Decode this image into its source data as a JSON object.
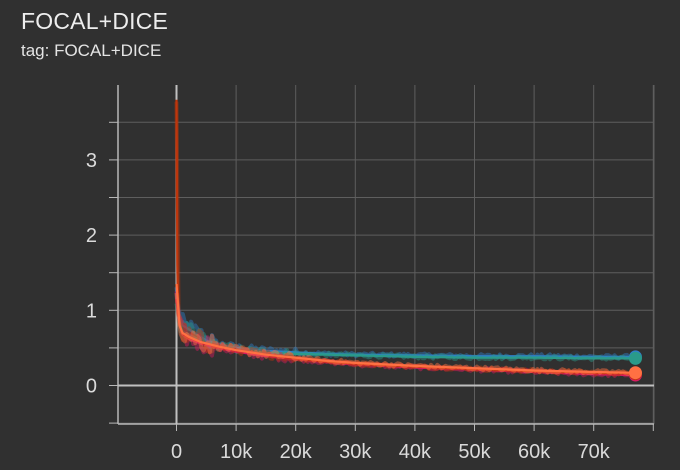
{
  "card": {
    "title": "FOCAL+DICE",
    "subtitle": "tag: FOCAL+DICE"
  },
  "colors": {
    "background": "#303030",
    "grid": "#5e5e5e",
    "axis": "#b8b8b8"
  },
  "chart_data": {
    "type": "line",
    "title": "FOCAL+DICE",
    "subtitle": "tag: FOCAL+DICE",
    "xlabel": "",
    "ylabel": "",
    "xlim": [
      -10000,
      80000
    ],
    "ylim": [
      -0.55,
      3.9
    ],
    "xticks": [
      0,
      10000,
      20000,
      30000,
      40000,
      50000,
      60000,
      70000
    ],
    "xtick_labels": [
      "0",
      "10k",
      "20k",
      "30k",
      "40k",
      "50k",
      "60k",
      "70k"
    ],
    "yticks": [
      0,
      1,
      2,
      3
    ],
    "ytick_labels": [
      "0",
      "1",
      "2",
      "3"
    ],
    "grid": true,
    "legend": "none",
    "series": [
      {
        "color": "#2f7fc8",
        "x": [
          0,
          500,
          1000,
          2000,
          3000,
          4000,
          5000,
          7000,
          10000,
          15000,
          20000,
          25000,
          30000,
          40000,
          50000,
          60000,
          70000,
          76000
        ],
        "y": [
          1.25,
          0.95,
          0.8,
          0.75,
          0.7,
          0.65,
          0.6,
          0.55,
          0.5,
          0.46,
          0.44,
          0.42,
          0.41,
          0.4,
          0.39,
          0.39,
          0.38,
          0.38
        ]
      },
      {
        "color": "#2a9a8a",
        "x": [
          0,
          500,
          1000,
          2000,
          3000,
          5000,
          7000,
          10000,
          15000,
          20000,
          30000,
          40000,
          50000,
          60000,
          70000,
          76000
        ],
        "y": [
          1.1,
          0.85,
          0.72,
          0.68,
          0.64,
          0.58,
          0.53,
          0.48,
          0.44,
          0.42,
          0.4,
          0.38,
          0.37,
          0.37,
          0.36,
          0.36
        ]
      },
      {
        "color": "#d81b60",
        "x": [
          0,
          500,
          1000,
          2000,
          4000,
          7000,
          10000,
          15000,
          20000,
          25000,
          30000,
          40000,
          50000,
          60000,
          70000,
          76000
        ],
        "y": [
          1.15,
          0.8,
          0.68,
          0.62,
          0.56,
          0.5,
          0.45,
          0.39,
          0.35,
          0.31,
          0.28,
          0.24,
          0.21,
          0.18,
          0.15,
          0.14
        ]
      },
      {
        "color": "#bf360c",
        "x": [
          0,
          150,
          300,
          600,
          1000,
          2000,
          4000,
          7000,
          10000,
          15000,
          20000,
          25000,
          30000,
          40000,
          50000,
          60000,
          70000,
          76000
        ],
        "y": [
          3.8,
          1.6,
          1.0,
          0.78,
          0.7,
          0.64,
          0.58,
          0.52,
          0.47,
          0.41,
          0.36,
          0.32,
          0.29,
          0.25,
          0.22,
          0.19,
          0.17,
          0.16
        ]
      },
      {
        "color": "#ff7043",
        "x": [
          0,
          500,
          1000,
          2000,
          4000,
          7000,
          10000,
          15000,
          20000,
          25000,
          30000,
          40000,
          50000,
          60000,
          70000,
          76000
        ],
        "y": [
          1.35,
          0.8,
          0.7,
          0.65,
          0.58,
          0.52,
          0.47,
          0.41,
          0.37,
          0.33,
          0.3,
          0.26,
          0.23,
          0.2,
          0.18,
          0.17
        ]
      }
    ]
  }
}
